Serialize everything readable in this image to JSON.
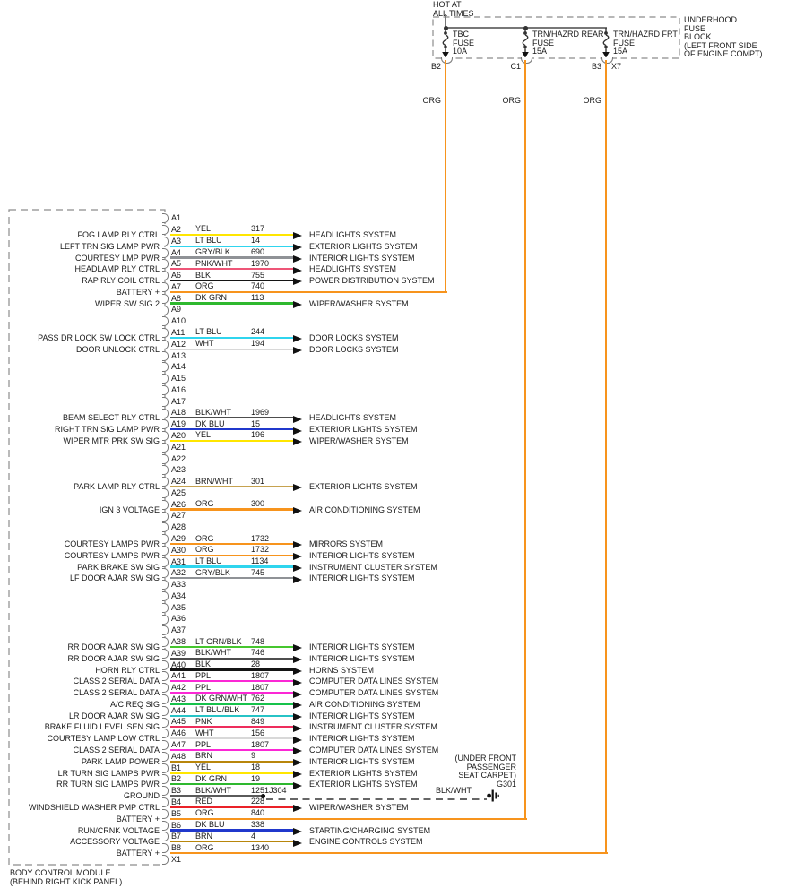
{
  "power": {
    "hot_lines": [
      "HOT AT",
      "ALL TIMES"
    ],
    "block_label_lines": [
      "UNDERHOOD",
      "FUSE",
      "BLOCK",
      "(LEFT FRONT SIDE",
      "OF ENGINE COMPT)"
    ],
    "fuses": [
      {
        "label_lines": [
          "TBC",
          "FUSE",
          "10A"
        ],
        "terminal": "B2",
        "terminal2": "",
        "wire_label": "ORG",
        "wire_hex": "#f7941d"
      },
      {
        "label_lines": [
          "TRN/HAZRD REAR",
          "FUSE",
          "15A"
        ],
        "terminal": "C1",
        "terminal2": "",
        "wire_label": "ORG",
        "wire_hex": "#f7941d"
      },
      {
        "label_lines": [
          "TRN/HAZRD FRT",
          "FUSE",
          "15A"
        ],
        "terminal": "B3",
        "terminal2": "X7",
        "wire_label": "ORG",
        "wire_hex": "#f7941d"
      }
    ]
  },
  "ground": {
    "splice": "J304",
    "wire_color": "BLK/WHT",
    "id": "G301",
    "location_lines": [
      "(UNDER FRONT",
      "PASSENGER",
      "SEAT CARPET)"
    ]
  },
  "bcm": {
    "name_lines": [
      "BODY CONTROL MODULE",
      "(BEHIND RIGHT KICK PANEL)"
    ],
    "pins": [
      {
        "pin": "A1",
        "type": "none"
      },
      {
        "pin": "A2",
        "type": "arrow",
        "signal": "FOG LAMP RLY CTRL",
        "color": "YEL",
        "hex": "#ffe600",
        "circuit": "317",
        "system": "HEADLIGHTS SYSTEM"
      },
      {
        "pin": "A3",
        "type": "arrow",
        "signal": "LEFT TRN SIG LAMP PWR",
        "color": "LT BLU",
        "hex": "#2fd5ee",
        "circuit": "14",
        "system": "EXTERIOR LIGHTS SYSTEM"
      },
      {
        "pin": "A4",
        "type": "arrow",
        "signal": "COURTESY LMP PWR",
        "color": "GRY/BLK",
        "hex": "#8f9296",
        "circuit": "690",
        "system": "INTERIOR LIGHTS SYSTEM"
      },
      {
        "pin": "A5",
        "type": "arrow",
        "signal": "HEADLAMP RLY CTRL",
        "color": "PNK/WHT",
        "hex": "#ee5577",
        "circuit": "1970",
        "system": "HEADLIGHTS SYSTEM"
      },
      {
        "pin": "A6",
        "type": "arrow",
        "signal": "RAP RLY COIL CTRL",
        "color": "BLK",
        "hex": "#141414",
        "circuit": "755",
        "system": "POWER DISTRIBUTION SYSTEM"
      },
      {
        "pin": "A7",
        "type": "riser",
        "riser": 0,
        "signal": "BATTERY +",
        "color": "ORG",
        "hex": "#f7941d",
        "circuit": "740"
      },
      {
        "pin": "A8",
        "type": "arrow",
        "signal": "WIPER SW SIG 2",
        "color": "DK GRN",
        "hex": "#2eb82e",
        "circuit": "113",
        "system": "WIPER/WASHER SYSTEM"
      },
      {
        "pin": "A9",
        "type": "none"
      },
      {
        "pin": "A10",
        "type": "none"
      },
      {
        "pin": "A11",
        "type": "arrow",
        "signal": "PASS DR LOCK SW LOCK CTRL",
        "color": "LT BLU",
        "hex": "#2fd5ee",
        "circuit": "244",
        "system": "DOOR LOCKS SYSTEM"
      },
      {
        "pin": "A12",
        "type": "arrow",
        "signal": "DOOR UNLOCK CTRL",
        "color": "WHT",
        "hex": "#d8d8d8",
        "circuit": "194",
        "system": "DOOR LOCKS SYSTEM"
      },
      {
        "pin": "A13",
        "type": "none"
      },
      {
        "pin": "A14",
        "type": "none"
      },
      {
        "pin": "A15",
        "type": "none"
      },
      {
        "pin": "A16",
        "type": "none"
      },
      {
        "pin": "A17",
        "type": "none"
      },
      {
        "pin": "A18",
        "type": "arrow",
        "signal": "BEAM SELECT RLY CTRL",
        "color": "BLK/WHT",
        "hex": "#4d4d4d",
        "circuit": "1969",
        "system": "HEADLIGHTS SYSTEM"
      },
      {
        "pin": "A19",
        "type": "arrow",
        "signal": "RIGHT TRN SIG LAMP PWR",
        "color": "DK BLU",
        "hex": "#2038cc",
        "circuit": "15",
        "system": "EXTERIOR LIGHTS SYSTEM"
      },
      {
        "pin": "A20",
        "type": "arrow",
        "signal": "WIPER MTR PRK SW SIG",
        "color": "YEL",
        "hex": "#ffe600",
        "circuit": "196",
        "system": "WIPER/WASHER SYSTEM"
      },
      {
        "pin": "A21",
        "type": "none"
      },
      {
        "pin": "A22",
        "type": "none"
      },
      {
        "pin": "A23",
        "type": "none"
      },
      {
        "pin": "A24",
        "type": "arrow",
        "signal": "PARK LAMP RLY CTRL",
        "color": "BRN/WHT",
        "hex": "#c6a24f",
        "circuit": "301",
        "system": "EXTERIOR LIGHTS SYSTEM"
      },
      {
        "pin": "A25",
        "type": "none"
      },
      {
        "pin": "A26",
        "type": "arrow",
        "signal": "IGN 3 VOLTAGE",
        "color": "ORG",
        "hex": "#f7941d",
        "circuit": "300",
        "system": "AIR CONDITIONING SYSTEM"
      },
      {
        "pin": "A27",
        "type": "none"
      },
      {
        "pin": "A28",
        "type": "none"
      },
      {
        "pin": "A29",
        "type": "arrow",
        "signal": "COURTESY LAMPS PWR",
        "color": "ORG",
        "hex": "#f7941d",
        "circuit": "1732",
        "system": "MIRRORS SYSTEM"
      },
      {
        "pin": "A30",
        "type": "arrow",
        "signal": "COURTESY LAMPS PWR",
        "color": "ORG",
        "hex": "#f7941d",
        "circuit": "1732",
        "system": "INTERIOR LIGHTS SYSTEM"
      },
      {
        "pin": "A31",
        "type": "arrow",
        "signal": "PARK BRAKE SW SIG",
        "color": "LT BLU",
        "hex": "#2fd5ee",
        "circuit": "1134",
        "system": "INSTRUMENT CLUSTER SYSTEM"
      },
      {
        "pin": "A32",
        "type": "arrow",
        "signal": "LF DOOR AJAR SW SIG",
        "color": "GRY/BLK",
        "hex": "#8f9296",
        "circuit": "745",
        "system": "INTERIOR LIGHTS SYSTEM"
      },
      {
        "pin": "A33",
        "type": "none"
      },
      {
        "pin": "A34",
        "type": "none"
      },
      {
        "pin": "A35",
        "type": "none"
      },
      {
        "pin": "A36",
        "type": "none"
      },
      {
        "pin": "A37",
        "type": "none"
      },
      {
        "pin": "A38",
        "type": "arrow",
        "signal": "RR DOOR AJAR SW SIG",
        "color": "LT GRN/BLK",
        "hex": "#46c62e",
        "circuit": "748",
        "system": "INTERIOR LIGHTS SYSTEM"
      },
      {
        "pin": "A39",
        "type": "arrow",
        "signal": "RR DOOR AJAR SW SIG",
        "color": "BLK/WHT",
        "hex": "#4d4d4d",
        "circuit": "746",
        "system": "INTERIOR LIGHTS SYSTEM"
      },
      {
        "pin": "A40",
        "type": "arrow",
        "signal": "HORN RLY CTRL",
        "color": "BLK",
        "hex": "#141414",
        "circuit": "28",
        "system": "HORNS SYSTEM"
      },
      {
        "pin": "A41",
        "type": "arrow",
        "signal": "CLASS 2 SERIAL DATA",
        "color": "PPL",
        "hex": "#fb28d5",
        "circuit": "1807",
        "system": "COMPUTER DATA LINES SYSTEM"
      },
      {
        "pin": "A42",
        "type": "arrow",
        "signal": "CLASS 2 SERIAL DATA",
        "color": "PPL",
        "hex": "#fb28d5",
        "circuit": "1807",
        "system": "COMPUTER DATA LINES SYSTEM"
      },
      {
        "pin": "A43",
        "type": "arrow",
        "signal": "A/C REQ SIG",
        "color": "DK GRN/WHT",
        "hex": "#17c24b",
        "circuit": "762",
        "system": "AIR CONDITIONING SYSTEM"
      },
      {
        "pin": "A44",
        "type": "arrow",
        "signal": "LR DOOR AJAR SW SIG",
        "color": "LT BLU/BLK",
        "hex": "#27c3c6",
        "circuit": "747",
        "system": "INTERIOR LIGHTS SYSTEM"
      },
      {
        "pin": "A45",
        "type": "arrow",
        "signal": "BRAKE FLUID LEVEL SEN SIG",
        "color": "PNK",
        "hex": "#ee2d5c",
        "circuit": "849",
        "system": "INSTRUMENT CLUSTER SYSTEM"
      },
      {
        "pin": "A46",
        "type": "arrow",
        "signal": "COURTESY LAMP LOW CTRL",
        "color": "WHT",
        "hex": "#d8d8d8",
        "circuit": "156",
        "system": "INTERIOR LIGHTS SYSTEM"
      },
      {
        "pin": "A47",
        "type": "arrow",
        "signal": "CLASS 2 SERIAL DATA",
        "color": "PPL",
        "hex": "#fb28d5",
        "circuit": "1807",
        "system": "COMPUTER DATA LINES SYSTEM"
      },
      {
        "pin": "A48",
        "type": "arrow",
        "signal": "PARK LAMP POWER",
        "color": "BRN",
        "hex": "#b8860b",
        "circuit": "9",
        "system": "INTERIOR LIGHTS SYSTEM"
      },
      {
        "pin": "B1",
        "type": "arrow",
        "signal": "LR TURN SIG LAMPS PWR",
        "color": "YEL",
        "hex": "#ffe600",
        "circuit": "18",
        "system": "EXTERIOR LIGHTS SYSTEM"
      },
      {
        "pin": "B2",
        "type": "arrow",
        "signal": "RR TURN SIG LAMPS PWR",
        "color": "DK GRN",
        "hex": "#2eb82e",
        "circuit": "19",
        "system": "EXTERIOR LIGHTS SYSTEM"
      },
      {
        "pin": "B3",
        "type": "ground",
        "signal": "GROUND",
        "color": "BLK/WHT",
        "hex": "#5a5a5a",
        "circuit": "1251"
      },
      {
        "pin": "B4",
        "type": "arrow",
        "signal": "WINDSHIELD WASHER PMP CTRL",
        "color": "RED",
        "hex": "#ea2128",
        "circuit": "228",
        "system": "WIPER/WASHER SYSTEM"
      },
      {
        "pin": "B5",
        "type": "riser",
        "riser": 1,
        "signal": "BATTERY +",
        "color": "ORG",
        "hex": "#f7941d",
        "circuit": "840"
      },
      {
        "pin": "B6",
        "type": "arrow",
        "signal": "RUN/CRNK VOLTAGE",
        "color": "DK BLU",
        "hex": "#2038cc",
        "circuit": "338",
        "system": "STARTING/CHARGING SYSTEM"
      },
      {
        "pin": "B7",
        "type": "arrow",
        "signal": "ACCESSORY VOLTAGE",
        "color": "BRN",
        "hex": "#b8860b",
        "circuit": "4",
        "system": "ENGINE CONTROLS SYSTEM"
      },
      {
        "pin": "B8",
        "type": "riser",
        "riser": 2,
        "signal": "BATTERY +",
        "color": "ORG",
        "hex": "#f7941d",
        "circuit": "1340"
      },
      {
        "pin": "X1",
        "type": "none"
      }
    ]
  }
}
